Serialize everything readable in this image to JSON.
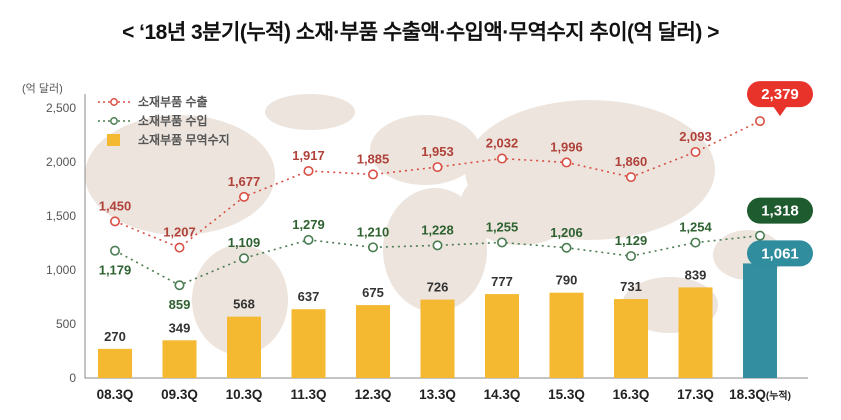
{
  "title": "< ‘18년 3분기(누적) 소재·부품 수출액·수입액·무역수지 추이(억 달러) >",
  "y_unit": "(억 달러)",
  "legend": {
    "export": "소재부품 수출",
    "import": "소재부품 수입",
    "balance": "소재부품 무역수지"
  },
  "colors": {
    "export_line": "#d94f44",
    "export_label": "#b0423a",
    "export_badge": "#e8332b",
    "import_line": "#4a7d52",
    "import_label": "#2f6231",
    "import_badge": "#1e5b2f",
    "bar_fill": "#f5b831",
    "bar_last_fill": "#338fa0",
    "balance_badge": "#2f8d9e",
    "map_background": "#ece4dd"
  },
  "chart_data": {
    "type": "combo",
    "categories": [
      "08.3Q",
      "09.3Q",
      "10.3Q",
      "11.3Q",
      "12.3Q",
      "13.3Q",
      "14.3Q",
      "15.3Q",
      "16.3Q",
      "17.3Q",
      "18.3Q"
    ],
    "last_category_suffix": "(누적)",
    "yticks": [
      0,
      500,
      1000,
      1500,
      2000,
      2500
    ],
    "ylim": [
      0,
      2500
    ],
    "grid": false,
    "legend_position": "top-left",
    "series": [
      {
        "name": "소재부품 수출",
        "type": "line",
        "color": "#d94f44",
        "label_color": "#b0423a",
        "badge_color": "#e8332b",
        "values": [
          1450,
          1207,
          1677,
          1917,
          1885,
          1953,
          2032,
          1996,
          1860,
          2093,
          2379
        ]
      },
      {
        "name": "소재부품 수입",
        "type": "line",
        "color": "#4a7d52",
        "label_color": "#2f6231",
        "badge_color": "#1e5b2f",
        "values": [
          1179,
          859,
          1109,
          1279,
          1210,
          1228,
          1255,
          1206,
          1129,
          1254,
          1318
        ]
      },
      {
        "name": "소재부품 무역수지",
        "type": "bar",
        "color": "#f5b831",
        "last_color": "#338fa0",
        "label_color": "#333333",
        "badge_color": "#2f8d9e",
        "values": [
          270,
          349,
          568,
          637,
          675,
          726,
          777,
          790,
          731,
          839,
          1061
        ]
      }
    ],
    "highlight_last": true
  }
}
